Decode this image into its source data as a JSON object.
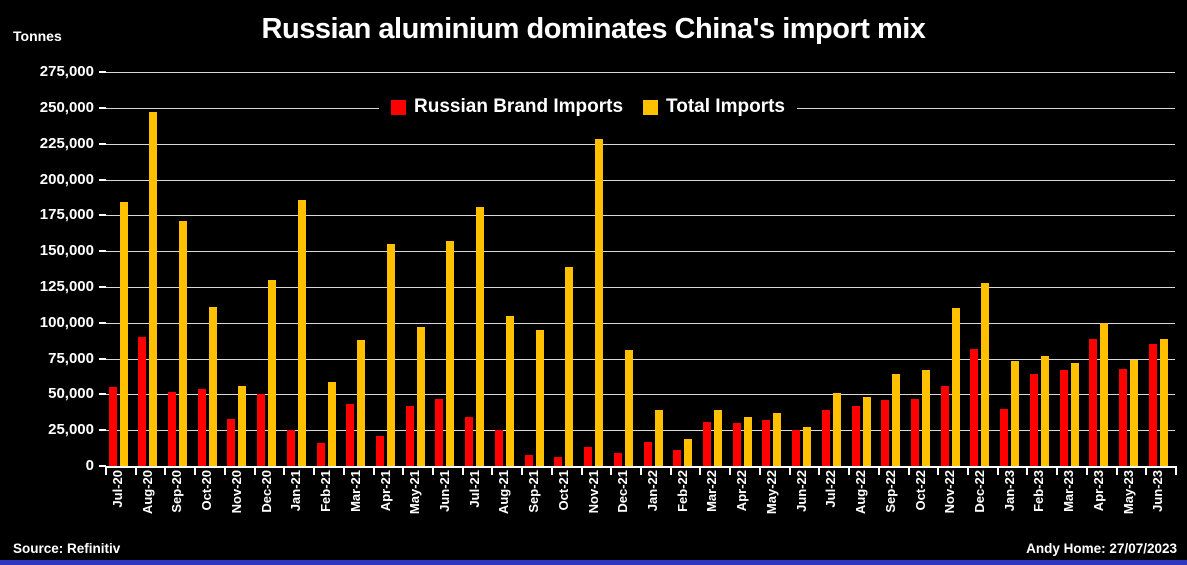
{
  "header": {
    "unit_label": "Tonnes",
    "title": "Russian aluminium dominates China's import mix"
  },
  "legend": [
    {
      "label": "Russian Brand Imports",
      "color": "#FF0000"
    },
    {
      "label": "Total Imports",
      "color": "#FFC000"
    }
  ],
  "footer": {
    "source": "Source: Refinitiv",
    "credit": "Andy Home: 27/07/2023"
  },
  "colors": {
    "background": "#000000",
    "text": "#FFFFFF",
    "gridline": "#D8D8D8",
    "axis": "#FFFFFF",
    "russian_brand": "#FF0000",
    "total_imports": "#FFC000",
    "bottom_accent_bar": "#2F36C0"
  },
  "chart_data": {
    "type": "bar",
    "title": "Russian aluminium dominates China's import mix",
    "xlabel": "",
    "ylabel": "Tonnes",
    "ylim": [
      0,
      275000
    ],
    "y_tick_step": 25000,
    "y_tick_values": [
      0,
      25000,
      50000,
      75000,
      100000,
      125000,
      150000,
      175000,
      200000,
      225000,
      250000,
      275000
    ],
    "y_tick_labels": [
      "0",
      "25,000",
      "50,000",
      "75,000",
      "100,000",
      "125,000",
      "150,000",
      "175,000",
      "200,000",
      "225,000",
      "250,000",
      "275,000"
    ],
    "grid": true,
    "legend_position": "top-center",
    "categories": [
      "Jul-20",
      "Aug-20",
      "Sep-20",
      "Oct-20",
      "Nov-20",
      "Dec-20",
      "Jan-21",
      "Feb-21",
      "Mar-21",
      "Apr-21",
      "May-21",
      "Jun-21",
      "Jul-21",
      "Aug-21",
      "Sep-21",
      "Oct-21",
      "Nov-21",
      "Dec-21",
      "Jan-22",
      "Feb-22",
      "Mar-22",
      "Apr-22",
      "May-22",
      "Jun-22",
      "Jul-22",
      "Aug-22",
      "Sep-22",
      "Oct-22",
      "Nov-22",
      "Dec-22",
      "Jan-23",
      "Feb-23",
      "Mar-23",
      "Apr-23",
      "May-23",
      "Jun-23"
    ],
    "series": [
      {
        "name": "Russian Brand Imports",
        "color": "#FF0000",
        "values": [
          55000,
          90000,
          52000,
          54000,
          33000,
          50000,
          25000,
          16000,
          43000,
          21000,
          42000,
          47000,
          34000,
          25000,
          8000,
          6000,
          13000,
          9000,
          17000,
          11000,
          31000,
          30000,
          32000,
          25000,
          39000,
          42000,
          46000,
          47000,
          56000,
          82000,
          40000,
          64000,
          67000,
          89000,
          68000,
          85000
        ]
      },
      {
        "name": "Total Imports",
        "color": "#FFC000",
        "values": [
          184000,
          247000,
          171000,
          111000,
          56000,
          130000,
          186000,
          59000,
          88000,
          155000,
          97000,
          157000,
          181000,
          105000,
          95000,
          139000,
          228000,
          81000,
          39000,
          19000,
          39000,
          34000,
          37000,
          27000,
          51000,
          48000,
          64000,
          67000,
          110000,
          128000,
          73000,
          77000,
          72000,
          100000,
          74000,
          89000
        ]
      }
    ]
  }
}
